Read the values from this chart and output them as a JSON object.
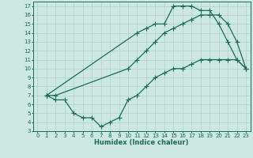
{
  "bg_color": "#cce8e0",
  "grid_color": "#b0d0cc",
  "line_color": "#1a6b5a",
  "line_width": 0.9,
  "marker": "+",
  "marker_size": 4,
  "marker_lw": 0.8,
  "xlabel": "Humidex (Indice chaleur)",
  "xlabel_fontsize": 6,
  "xlabel_color": "#1a6b5a",
  "xlim": [
    -0.5,
    23.5
  ],
  "ylim": [
    3,
    17.5
  ],
  "xtick_labels": [
    "0",
    "1",
    "2",
    "3",
    "4",
    "5",
    "6",
    "7",
    "8",
    "9",
    "10",
    "11",
    "12",
    "13",
    "14",
    "15",
    "16",
    "17",
    "18",
    "19",
    "20",
    "21",
    "22",
    "23"
  ],
  "ytick_labels": [
    "3",
    "4",
    "5",
    "6",
    "7",
    "8",
    "9",
    "10",
    "11",
    "12",
    "13",
    "14",
    "15",
    "16",
    "17"
  ],
  "tick_fontsize": 5,
  "curve1": [
    [
      1,
      7
    ],
    [
      11,
      14
    ],
    [
      12,
      14.5
    ],
    [
      13,
      15
    ],
    [
      14,
      15
    ],
    [
      15,
      17
    ],
    [
      16,
      17
    ],
    [
      17,
      17
    ],
    [
      18,
      16.5
    ],
    [
      19,
      16.5
    ],
    [
      20,
      15
    ],
    [
      21,
      13
    ],
    [
      22,
      11
    ],
    [
      23,
      10
    ]
  ],
  "curve2": [
    [
      1,
      7
    ],
    [
      2,
      7
    ],
    [
      10,
      10
    ],
    [
      11,
      11
    ],
    [
      12,
      12
    ],
    [
      13,
      13
    ],
    [
      14,
      14
    ],
    [
      15,
      14.5
    ],
    [
      16,
      15
    ],
    [
      17,
      15.5
    ],
    [
      18,
      16
    ],
    [
      19,
      16
    ],
    [
      20,
      16
    ],
    [
      21,
      15
    ],
    [
      22,
      13
    ],
    [
      23,
      10
    ]
  ],
  "curve3": [
    [
      1,
      7
    ],
    [
      2,
      6.5
    ],
    [
      3,
      6.5
    ],
    [
      4,
      5
    ],
    [
      5,
      4.5
    ],
    [
      6,
      4.5
    ],
    [
      7,
      3.5
    ],
    [
      8,
      4
    ],
    [
      9,
      4.5
    ],
    [
      10,
      6.5
    ],
    [
      11,
      7
    ],
    [
      12,
      8
    ],
    [
      13,
      9
    ],
    [
      14,
      9.5
    ],
    [
      15,
      10
    ],
    [
      16,
      10
    ],
    [
      17,
      10.5
    ],
    [
      18,
      11
    ],
    [
      19,
      11
    ],
    [
      20,
      11
    ],
    [
      21,
      11
    ],
    [
      22,
      11
    ],
    [
      23,
      10
    ]
  ]
}
